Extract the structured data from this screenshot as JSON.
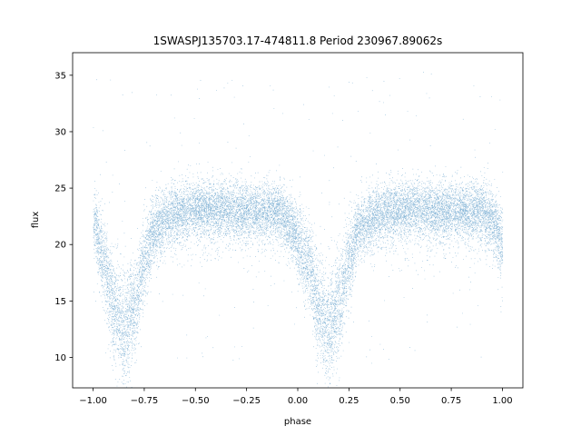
{
  "chart_data": {
    "type": "scatter",
    "title": "1SWASPJ135703.17-474811.8 Period 230967.89062s",
    "xlabel": "phase",
    "ylabel": "flux",
    "xlim": [
      -1.1,
      1.1
    ],
    "ylim": [
      7.3,
      37.0
    ],
    "xticks": [
      -1.0,
      -0.75,
      -0.5,
      -0.25,
      0.0,
      0.25,
      0.5,
      0.75,
      1.0
    ],
    "xtick_labels": [
      "−1.00",
      "−0.75",
      "−0.50",
      "−0.25",
      "0.00",
      "0.25",
      "0.50",
      "0.75",
      "1.00"
    ],
    "yticks": [
      10,
      15,
      20,
      25,
      30,
      35
    ],
    "ytick_labels": [
      "10",
      "15",
      "20",
      "25",
      "30",
      "35"
    ],
    "grid": false,
    "legend": "none",
    "point_color": "#1f77b4",
    "series": [
      {
        "phase_range": [
          -1.0,
          1.0
        ],
        "baseline_flux": 23.3,
        "scatter_width": 1.2,
        "eclipse_phases": [
          -0.85,
          0.15
        ],
        "eclipse_min_flux": 12.3,
        "outlier_range": [
          9,
          35.5
        ],
        "curve": [
          {
            "x": -1.0,
            "y": 22.0
          },
          {
            "x": -0.95,
            "y": 18.5
          },
          {
            "x": -0.9,
            "y": 14.5
          },
          {
            "x": -0.85,
            "y": 12.5
          },
          {
            "x": -0.8,
            "y": 14.5
          },
          {
            "x": -0.75,
            "y": 18.5
          },
          {
            "x": -0.7,
            "y": 21.5
          },
          {
            "x": -0.6,
            "y": 22.8
          },
          {
            "x": -0.5,
            "y": 23.2
          },
          {
            "x": -0.25,
            "y": 23.0
          },
          {
            "x": -0.1,
            "y": 23.1
          },
          {
            "x": -0.05,
            "y": 22.0
          },
          {
            "x": 0.05,
            "y": 18.5
          },
          {
            "x": 0.1,
            "y": 14.5
          },
          {
            "x": 0.15,
            "y": 12.5
          },
          {
            "x": 0.2,
            "y": 14.5
          },
          {
            "x": 0.25,
            "y": 18.5
          },
          {
            "x": 0.3,
            "y": 21.5
          },
          {
            "x": 0.4,
            "y": 22.8
          },
          {
            "x": 0.5,
            "y": 23.2
          },
          {
            "x": 0.75,
            "y": 23.0
          },
          {
            "x": 0.9,
            "y": 23.1
          },
          {
            "x": 0.95,
            "y": 22.0
          },
          {
            "x": 1.0,
            "y": 20.0
          }
        ]
      }
    ]
  }
}
